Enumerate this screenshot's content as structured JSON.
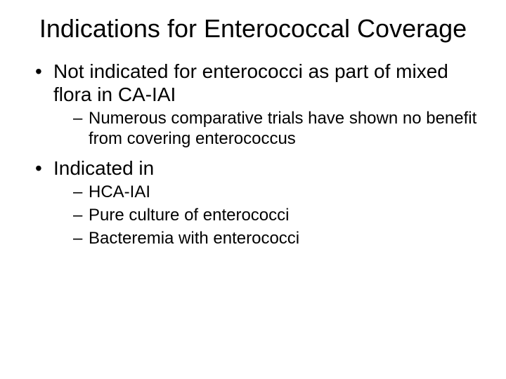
{
  "slide": {
    "title": "Indications for Enterococcal Coverage",
    "bullets": [
      {
        "text": "Not indicated for enterococci as part of mixed flora in CA-IAI",
        "sub": [
          "Numerous comparative trials have shown no benefit from covering enterococcus"
        ]
      },
      {
        "text": "Indicated in",
        "sub": [
          "HCA-IAI",
          "Pure culture of enterococci",
          "Bacteremia with enterococci"
        ]
      }
    ],
    "colors": {
      "background": "#ffffff",
      "text": "#000000"
    },
    "typography": {
      "title_fontsize_pt": 36,
      "body_fontsize_pt": 28,
      "sub_fontsize_pt": 24,
      "font_family": "Arial"
    }
  }
}
